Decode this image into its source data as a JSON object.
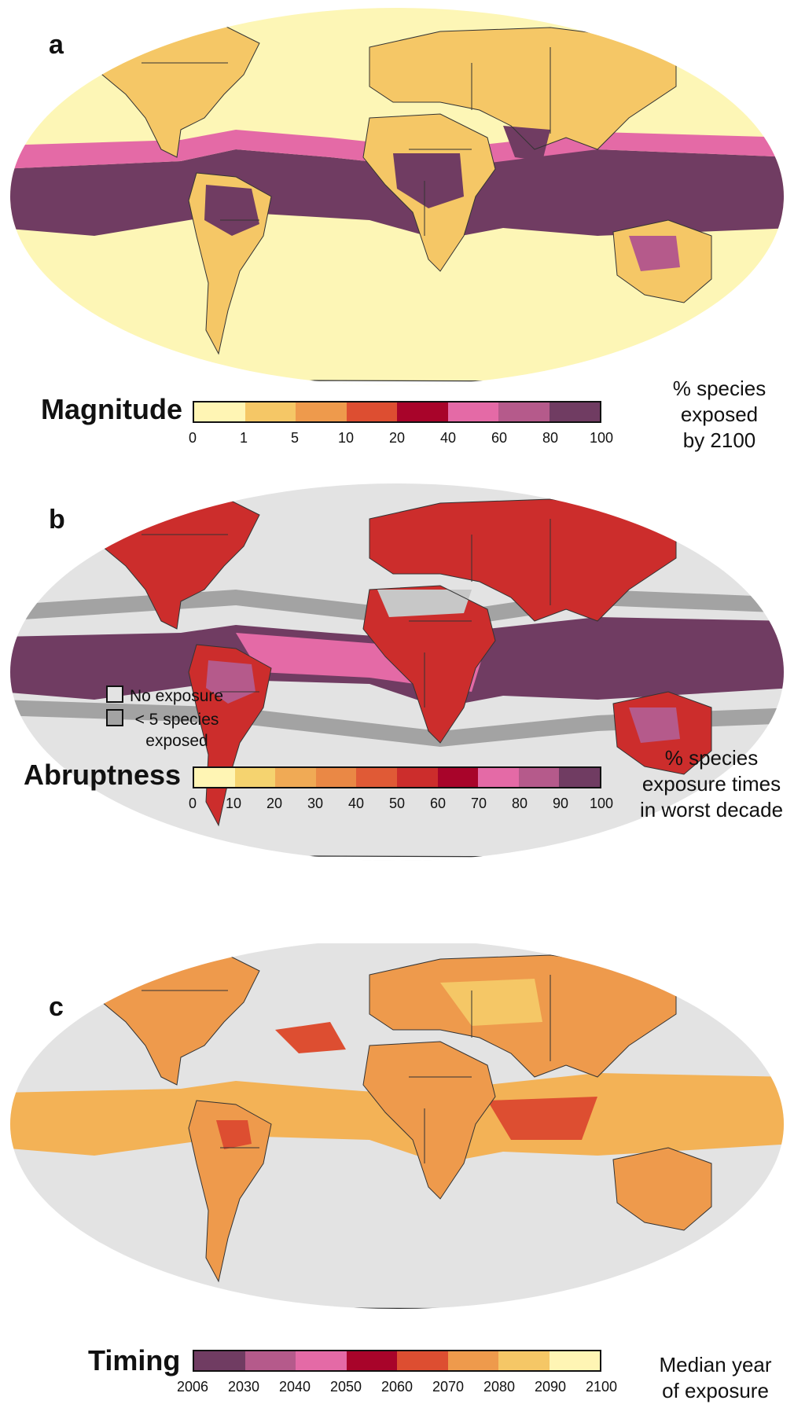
{
  "panels": [
    {
      "letter": "a",
      "legend_title": "Magnitude",
      "unit_lines": [
        "% species",
        "exposed",
        "by 2100"
      ],
      "tick_labels": [
        "0",
        "1",
        "5",
        "10",
        "20",
        "40",
        "60",
        "80",
        "100"
      ],
      "colors": [
        "#fff5b4",
        "#f5c766",
        "#ee9a4c",
        "#dd4e31",
        "#a8042a",
        "#e46aa6",
        "#b55a8b",
        "#703c62"
      ],
      "background": "#fdf6b6",
      "ocean_band": "#703c62",
      "land_base": "#f5c766"
    },
    {
      "letter": "b",
      "legend_title": "Abruptness",
      "unit_lines": [
        "% species",
        "exposure times",
        "in worst decade"
      ],
      "tick_labels": [
        "0",
        "10",
        "20",
        "30",
        "40",
        "50",
        "60",
        "70",
        "80",
        "90",
        "100"
      ],
      "colors": [
        "#fff5b4",
        "#f5d36f",
        "#f0aa55",
        "#ea8845",
        "#e05a36",
        "#cc2d2c",
        "#a8042a",
        "#e46aa6",
        "#b55a8b",
        "#703c62"
      ],
      "background": "#e3e3e3",
      "ocean_band": "#703c62",
      "land_base": "#cc2d2c",
      "key": [
        {
          "label": "No exposure",
          "color": "#e3e3e3"
        },
        {
          "label": "< 5 species exposed",
          "color": "#a3a3a3"
        }
      ]
    },
    {
      "letter": "c",
      "legend_title": "Timing",
      "unit_lines": [
        "Median year",
        "of exposure"
      ],
      "tick_labels": [
        "2006",
        "2030",
        "2040",
        "2050",
        "2060",
        "2070",
        "2080",
        "2090",
        "2100"
      ],
      "colors": [
        "#703c62",
        "#b55a8b",
        "#e46aa6",
        "#a8042a",
        "#dd4e31",
        "#ee9a4c",
        "#f5c766",
        "#fff5b4"
      ],
      "background": "#e3e3e3",
      "ocean_band": "#f3b256",
      "land_base": "#ee9a4c"
    }
  ]
}
